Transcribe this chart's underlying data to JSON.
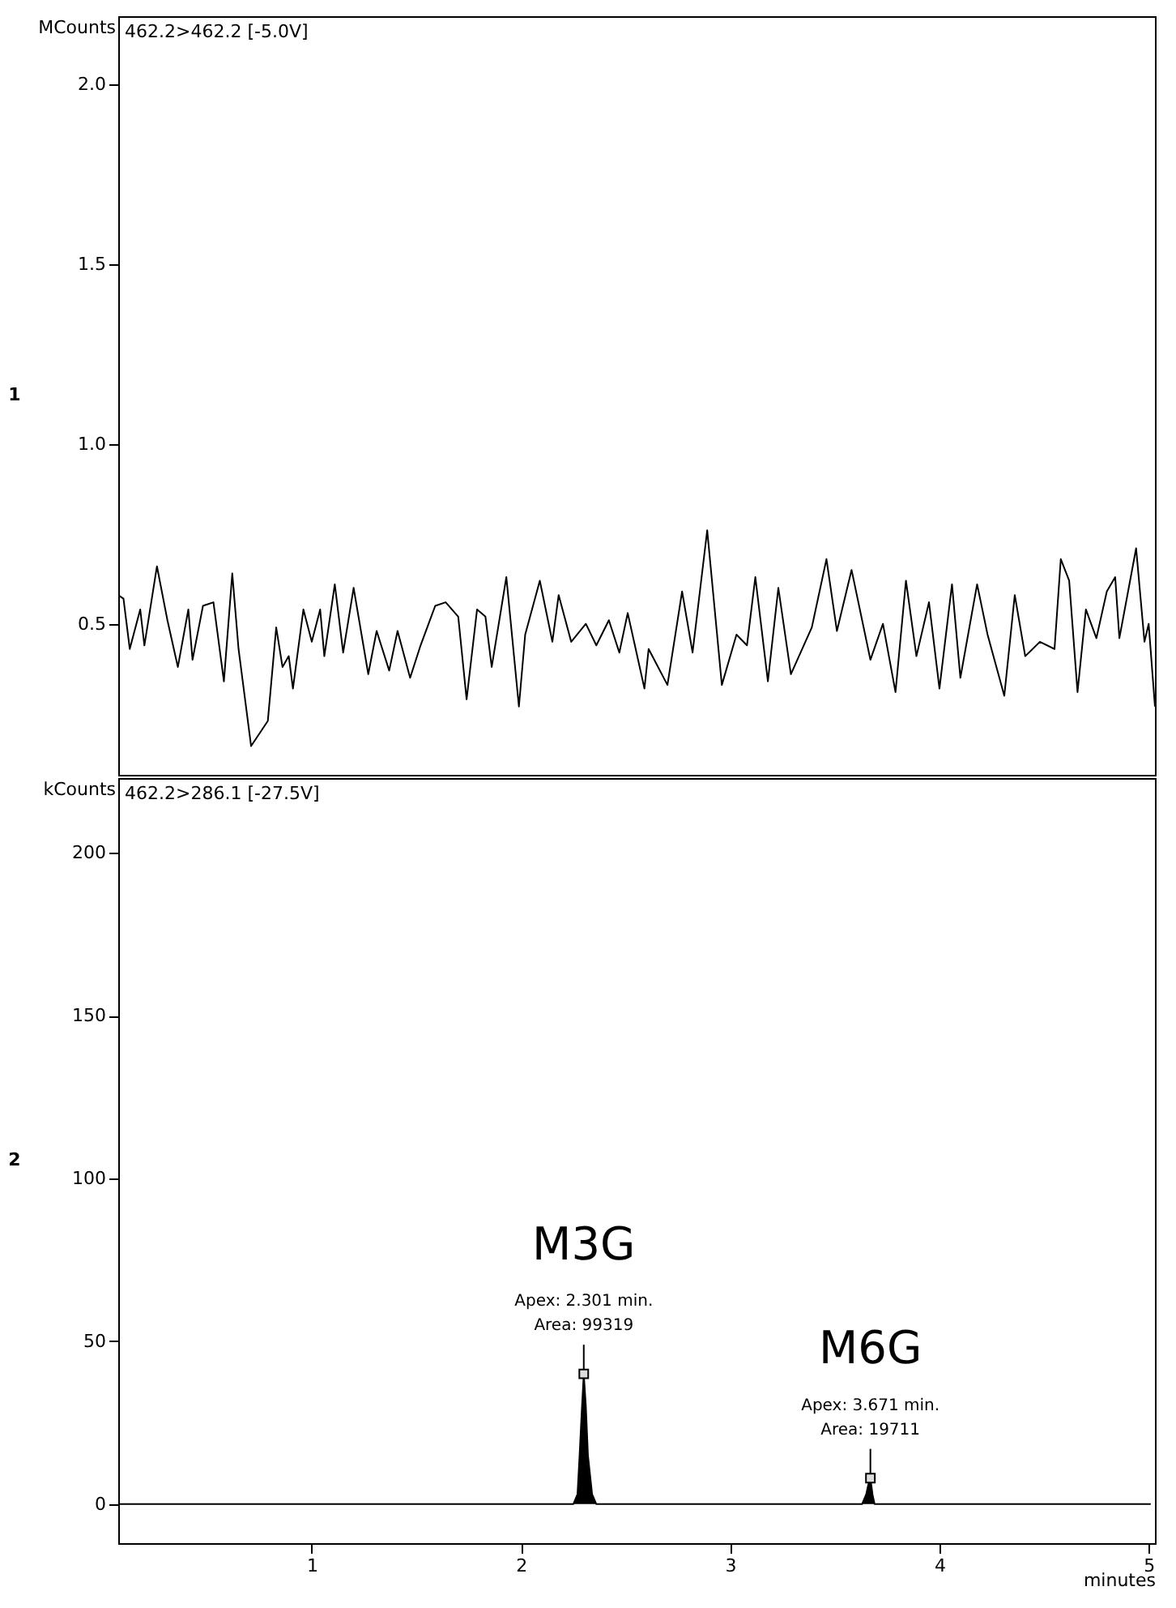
{
  "chart_data": [
    {
      "type": "line",
      "title": "462.2>462.2 [-5.0V]",
      "ylabel": "MCounts",
      "xlim": [
        0.075,
        5.03
      ],
      "ylim": [
        0.08,
        2.19
      ],
      "yticks": [
        0.5,
        {
          "value": 1.0,
          "label": "1.0"
        },
        1.5,
        {
          "value": 2.0,
          "label": "2.0"
        }
      ],
      "tick_labels": "y",
      "grid": false,
      "marker": "none",
      "line_style": "solid",
      "annotations": [
        "1"
      ],
      "series": [
        {
          "color": "#000000",
          "x": [
            0.075,
            0.1,
            0.13,
            0.18,
            0.2,
            0.26,
            0.31,
            0.36,
            0.41,
            0.43,
            0.48,
            0.53,
            0.58,
            0.62,
            0.65,
            0.71,
            0.79,
            0.83,
            0.86,
            0.89,
            0.91,
            0.96,
            1.0,
            1.04,
            1.06,
            1.11,
            1.15,
            1.2,
            1.27,
            1.31,
            1.37,
            1.41,
            1.47,
            1.52,
            1.59,
            1.64,
            1.7,
            1.74,
            1.79,
            1.83,
            1.86,
            1.93,
            1.99,
            2.02,
            2.09,
            2.15,
            2.18,
            2.24,
            2.31,
            2.36,
            2.42,
            2.47,
            2.51,
            2.59,
            2.61,
            2.7,
            2.77,
            2.82,
            2.89,
            2.96,
            3.03,
            3.08,
            3.12,
            3.18,
            3.23,
            3.29,
            3.39,
            3.46,
            3.51,
            3.58,
            3.67,
            3.73,
            3.79,
            3.84,
            3.89,
            3.95,
            4.0,
            4.06,
            4.1,
            4.18,
            4.23,
            4.31,
            4.36,
            4.41,
            4.48,
            4.55,
            4.58,
            4.62,
            4.66,
            4.7,
            4.75,
            4.8,
            4.84,
            4.86,
            4.94,
            4.98,
            5.0,
            5.03
          ],
          "values": [
            0.58,
            0.57,
            0.43,
            0.54,
            0.44,
            0.66,
            0.51,
            0.38,
            0.54,
            0.4,
            0.55,
            0.56,
            0.34,
            0.64,
            0.43,
            0.16,
            0.23,
            0.49,
            0.38,
            0.41,
            0.32,
            0.54,
            0.45,
            0.54,
            0.41,
            0.61,
            0.42,
            0.6,
            0.36,
            0.48,
            0.37,
            0.48,
            0.35,
            0.44,
            0.55,
            0.56,
            0.52,
            0.29,
            0.54,
            0.52,
            0.38,
            0.63,
            0.27,
            0.47,
            0.62,
            0.45,
            0.58,
            0.45,
            0.5,
            0.44,
            0.51,
            0.42,
            0.53,
            0.32,
            0.43,
            0.33,
            0.59,
            0.42,
            0.76,
            0.33,
            0.47,
            0.44,
            0.63,
            0.34,
            0.6,
            0.36,
            0.49,
            0.68,
            0.48,
            0.65,
            0.4,
            0.5,
            0.31,
            0.62,
            0.41,
            0.56,
            0.32,
            0.61,
            0.35,
            0.61,
            0.47,
            0.3,
            0.58,
            0.41,
            0.45,
            0.43,
            0.68,
            0.62,
            0.31,
            0.54,
            0.46,
            0.59,
            0.63,
            0.46,
            0.71,
            0.45,
            0.5,
            0.27
          ]
        }
      ]
    },
    {
      "type": "area",
      "title": "462.2>286.1 [-27.5V]",
      "ylabel": "kCounts",
      "xlabel": "minutes",
      "xlim": [
        0.075,
        5.03
      ],
      "ylim": [
        -12,
        223
      ],
      "xticks": [
        1,
        2,
        3,
        4,
        5
      ],
      "yticks": [
        0,
        50,
        100,
        150,
        200
      ],
      "grid": false,
      "marker": "none",
      "line_style": "solid",
      "annotations": [
        "M3G",
        "Apex: 2.301 min.",
        {
          "text": "Area: 99319",
          "x": 2.3,
          "y": 40
        },
        "M6G",
        "Apex: 3.671 min.",
        {
          "text": "Area: 19711",
          "x": 3.67,
          "y": 8
        },
        "2"
      ],
      "series": [
        {
          "color": "#000000",
          "x": [
            0.075,
            2.25,
            2.27,
            2.28,
            2.29,
            2.3,
            2.31,
            2.32,
            2.34,
            2.36,
            3.63,
            3.65,
            3.66,
            3.67,
            3.68,
            3.69,
            5.01
          ],
          "values": [
            0,
            0,
            3,
            15,
            28,
            40,
            30,
            15,
            3,
            0,
            0,
            3,
            6,
            8,
            3,
            0,
            0
          ]
        }
      ]
    }
  ]
}
